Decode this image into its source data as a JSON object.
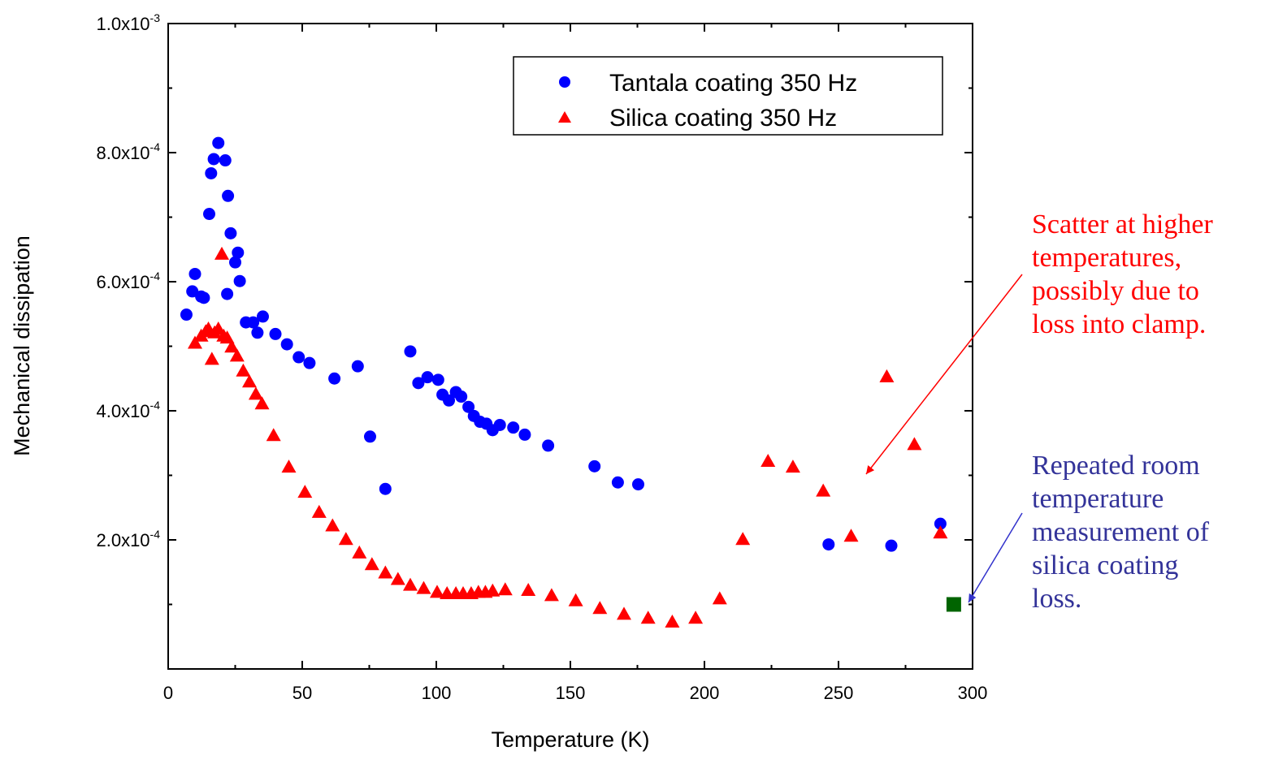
{
  "chart_data": {
    "type": "scatter",
    "xlabel": "Temperature (K)",
    "ylabel": "Mechanical dissipation",
    "xlim": [
      0,
      300
    ],
    "ylim": [
      0,
      0.001
    ],
    "x_ticks": [
      0,
      50,
      100,
      150,
      200,
      250,
      300
    ],
    "y_tick_labels": [
      {
        "value": 0.0002,
        "mantissa": "2.0x10",
        "exponent": "-4"
      },
      {
        "value": 0.0004,
        "mantissa": "4.0x10",
        "exponent": "-4"
      },
      {
        "value": 0.0006,
        "mantissa": "6.0x10",
        "exponent": "-4"
      },
      {
        "value": 0.0008,
        "mantissa": "8.0x10",
        "exponent": "-4"
      },
      {
        "value": 0.001,
        "mantissa": "1.0x10",
        "exponent": "-3"
      }
    ],
    "grid": false,
    "legend_position": "top-right",
    "series": [
      {
        "name": "Tantala coating 350 Hz",
        "marker": "circle",
        "color": "#0000ff",
        "points": [
          [
            6.8,
            0.000549
          ],
          [
            9.0,
            0.000585
          ],
          [
            10.0,
            0.000612
          ],
          [
            12.3,
            0.000577
          ],
          [
            13.3,
            0.000575
          ],
          [
            15.3,
            0.000705
          ],
          [
            16.0,
            0.000768
          ],
          [
            17.0,
            0.00079
          ],
          [
            18.7,
            0.000815
          ],
          [
            21.3,
            0.000788
          ],
          [
            22.3,
            0.000733
          ],
          [
            22.0,
            0.000581
          ],
          [
            23.3,
            0.000675
          ],
          [
            25.0,
            0.00063
          ],
          [
            26.0,
            0.000645
          ],
          [
            26.7,
            0.000601
          ],
          [
            29.0,
            0.000537
          ],
          [
            31.7,
            0.000537
          ],
          [
            33.3,
            0.000521
          ],
          [
            35.3,
            0.000546
          ],
          [
            40.0,
            0.000519
          ],
          [
            44.3,
            0.000503
          ],
          [
            48.7,
            0.000483
          ],
          [
            52.7,
            0.000474
          ],
          [
            62.0,
            0.00045
          ],
          [
            70.7,
            0.000469
          ],
          [
            75.3,
            0.00036
          ],
          [
            81.0,
            0.000279
          ],
          [
            90.3,
            0.000492
          ],
          [
            93.3,
            0.000443
          ],
          [
            96.7,
            0.000452
          ],
          [
            100.7,
            0.000448
          ],
          [
            102.3,
            0.000425
          ],
          [
            104.7,
            0.000416
          ],
          [
            107.3,
            0.000429
          ],
          [
            109.3,
            0.000422
          ],
          [
            112.0,
            0.000406
          ],
          [
            114.0,
            0.000392
          ],
          [
            116.3,
            0.000383
          ],
          [
            118.7,
            0.00038
          ],
          [
            121.0,
            0.00037
          ],
          [
            123.7,
            0.000378
          ],
          [
            128.7,
            0.000374
          ],
          [
            133.0,
            0.000363
          ],
          [
            141.7,
            0.000346
          ],
          [
            159.0,
            0.000314
          ],
          [
            167.7,
            0.000289
          ],
          [
            175.3,
            0.000286
          ],
          [
            246.3,
            0.000193
          ],
          [
            269.7,
            0.000191
          ],
          [
            288.0,
            0.000225
          ]
        ]
      },
      {
        "name": "Silica coating 350 Hz",
        "marker": "triangle",
        "color": "#ff0000",
        "points": [
          [
            10.0,
            0.000505
          ],
          [
            12.3,
            0.000516
          ],
          [
            14.0,
            0.000523
          ],
          [
            15.0,
            0.000527
          ],
          [
            16.3,
            0.00048
          ],
          [
            17.3,
            0.000521
          ],
          [
            18.7,
            0.000527
          ],
          [
            20.0,
            0.000643
          ],
          [
            20.7,
            0.000516
          ],
          [
            22.0,
            0.000513
          ],
          [
            23.7,
            0.000499
          ],
          [
            25.7,
            0.000485
          ],
          [
            28.0,
            0.000462
          ],
          [
            30.3,
            0.000445
          ],
          [
            32.7,
            0.000426
          ],
          [
            35.0,
            0.000411
          ],
          [
            39.3,
            0.000362
          ],
          [
            45.0,
            0.000313
          ],
          [
            51.0,
            0.000274
          ],
          [
            56.3,
            0.000243
          ],
          [
            61.3,
            0.000222
          ],
          [
            66.3,
            0.000201
          ],
          [
            71.3,
            0.00018
          ],
          [
            76.0,
            0.000162
          ],
          [
            81.0,
            0.000149
          ],
          [
            85.7,
            0.000139
          ],
          [
            90.3,
            0.00013
          ],
          [
            95.3,
            0.000125
          ],
          [
            100.3,
            0.000119
          ],
          [
            104.0,
            0.000117
          ],
          [
            107.3,
            0.000117
          ],
          [
            110.0,
            0.000117
          ],
          [
            113.0,
            0.000117
          ],
          [
            115.7,
            0.000119
          ],
          [
            118.3,
            0.000119
          ],
          [
            121.0,
            0.000121
          ],
          [
            125.7,
            0.000123
          ],
          [
            134.3,
            0.000122
          ],
          [
            143.0,
            0.000114
          ],
          [
            152.0,
            0.000106
          ],
          [
            161.0,
            9.4e-05
          ],
          [
            170.0,
            8.5e-05
          ],
          [
            179.0,
            7.9e-05
          ],
          [
            188.0,
            7.3e-05
          ],
          [
            196.7,
            7.9e-05
          ],
          [
            205.7,
            0.000109
          ],
          [
            214.3,
            0.000201
          ],
          [
            223.7,
            0.000322
          ],
          [
            233.0,
            0.000313
          ],
          [
            244.3,
            0.000276
          ],
          [
            254.7,
            0.000206
          ],
          [
            268.0,
            0.000453
          ],
          [
            278.3,
            0.000348
          ],
          [
            288.0,
            0.000211
          ]
        ]
      },
      {
        "marker": "square",
        "color": "#006400",
        "points": [
          [
            293.0,
            0.0001
          ]
        ]
      }
    ],
    "annotations": [
      {
        "text": "Scatter at higher\ntemperatures,\npossibly due to\nloss into clamp.",
        "color": "#ff0000"
      },
      {
        "text": "Repeated room\ntemperature\nmeasurement of\nsilica coating\nloss.",
        "color": "#333399"
      }
    ]
  }
}
